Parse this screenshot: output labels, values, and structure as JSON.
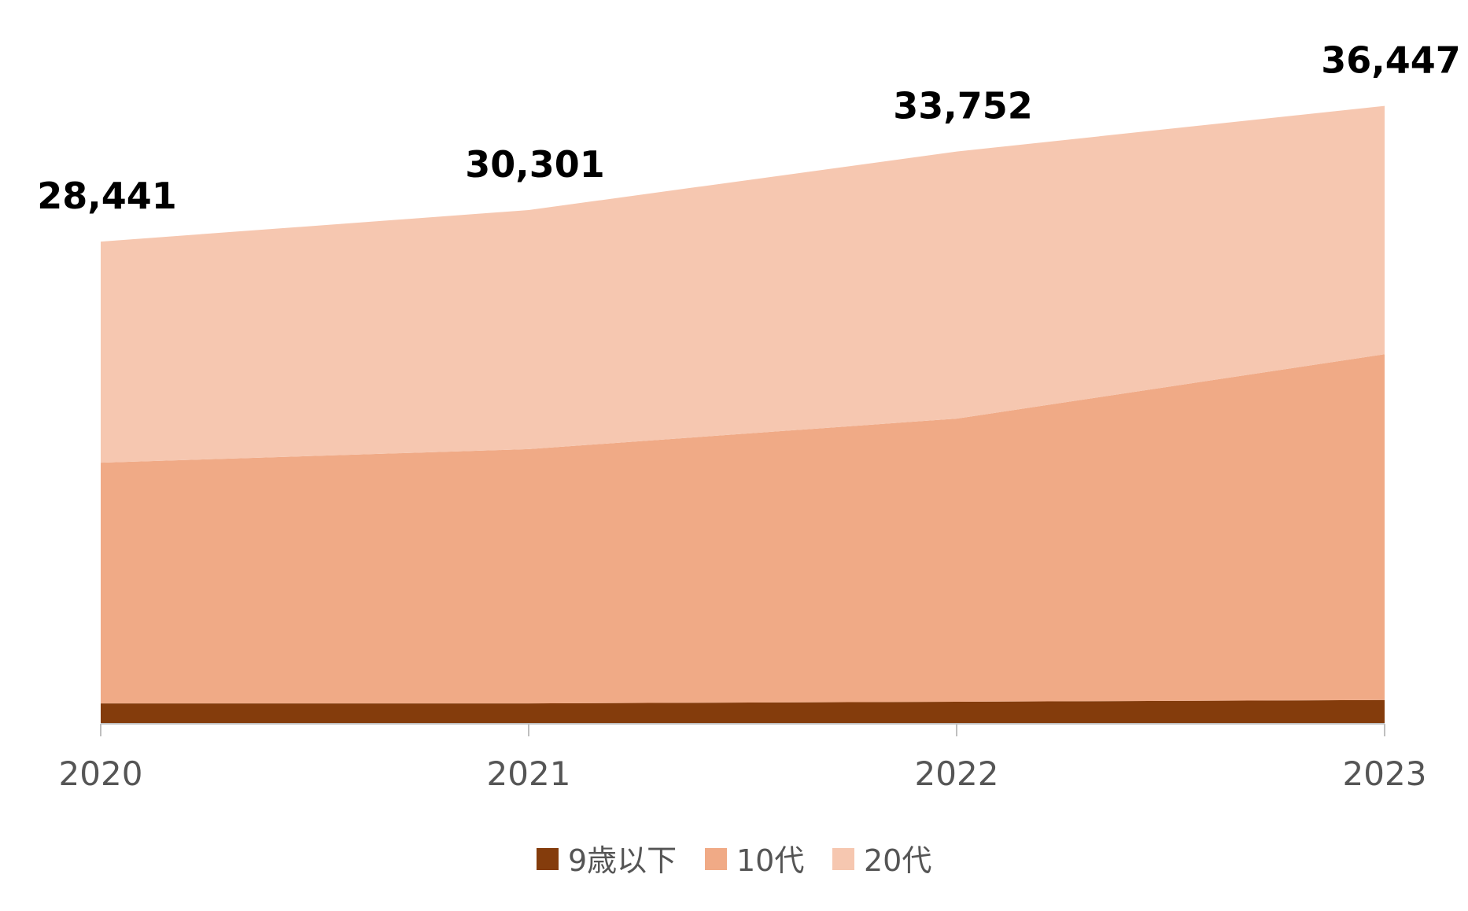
{
  "chart_data": {
    "type": "area",
    "stacked": true,
    "categories": [
      "2020",
      "2021",
      "2022",
      "2023"
    ],
    "series": [
      {
        "name": "9歳以下",
        "color": "#843c0c",
        "values": [
          1200,
          1200,
          1300,
          1400
        ]
      },
      {
        "name": "10代",
        "color": "#f0aa86",
        "values": [
          14200,
          15000,
          16700,
          20400
        ]
      },
      {
        "name": "20代",
        "color": "#f6c7b0",
        "values": [
          13041,
          14101,
          15752,
          14647
        ]
      }
    ],
    "totals": [
      28441,
      30301,
      33752,
      36447
    ],
    "total_labels": [
      "28,441",
      "30,301",
      "33,752",
      "36,447"
    ],
    "ylim": [
      0,
      40000
    ],
    "legend_position": "bottom",
    "grid": false,
    "title": "",
    "xlabel": "",
    "ylabel": ""
  }
}
